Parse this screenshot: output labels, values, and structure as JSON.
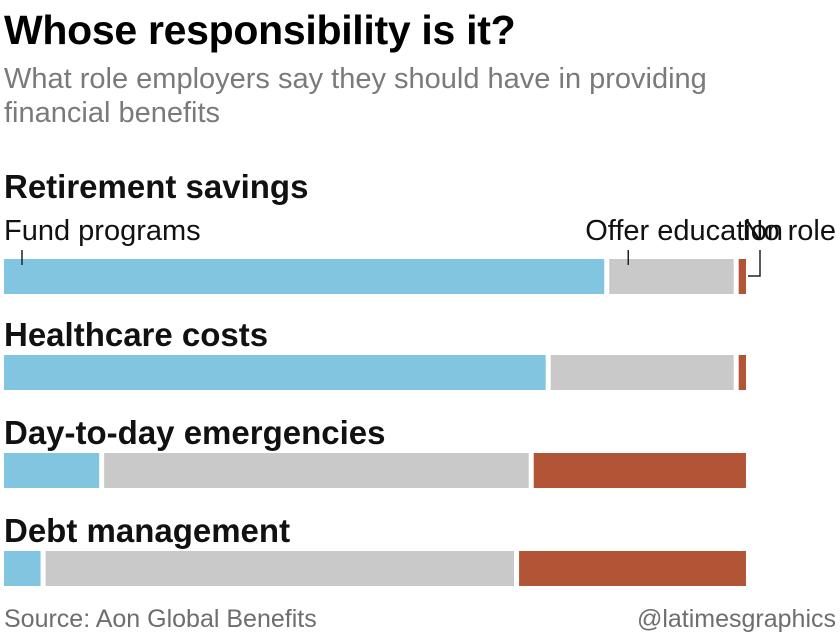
{
  "title": "Whose responsibility is it?",
  "subtitle": "What role employers say they should have in providing financial benefits",
  "source": "Source: Aon Global Benefits",
  "credit": "@latimesgraphics",
  "colors": {
    "fund": "#82c5e0",
    "educate": "#c9c9c9",
    "none": "#b15536"
  },
  "chart_data": {
    "type": "bar",
    "stacked": true,
    "orientation": "horizontal",
    "unit": "percent",
    "categories": [
      "Retirement savings",
      "Healthcare costs",
      "Day-to-day emergencies",
      "Debt management"
    ],
    "series": [
      {
        "name": "Fund programs",
        "values": [
          82,
          74,
          13,
          5
        ]
      },
      {
        "name": "Offer education",
        "values": [
          17,
          25,
          58,
          64
        ]
      },
      {
        "name": "No role",
        "values": [
          1,
          1,
          29,
          31
        ]
      }
    ],
    "xlim": [
      0,
      100
    ],
    "grid": false,
    "legend": "labels above the first bar"
  }
}
